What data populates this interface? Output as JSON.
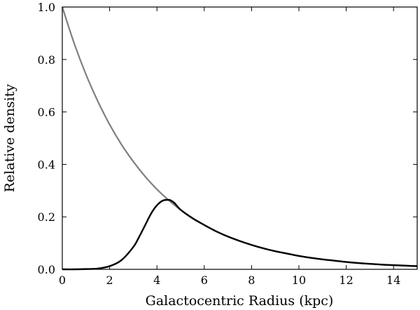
{
  "chart_data": {
    "type": "line",
    "xlabel": "Galactocentric Radius (kpc)",
    "ylabel": "Relative density",
    "xlim": [
      0,
      15
    ],
    "ylim": [
      0,
      1.0
    ],
    "xticks": [
      0,
      2,
      4,
      6,
      8,
      10,
      12,
      14
    ],
    "yticks": [
      0.0,
      0.2,
      0.4,
      0.6,
      0.8,
      1.0
    ],
    "xtick_labels": [
      "0",
      "2",
      "4",
      "6",
      "8",
      "10",
      "12",
      "14"
    ],
    "ytick_labels": [
      "0.0",
      "0.2",
      "0.4",
      "0.6",
      "0.8",
      "1.0"
    ],
    "grid": false,
    "series": [
      {
        "color": "#808080",
        "x": [
          0,
          0.5,
          1,
          1.5,
          2,
          2.5,
          3,
          3.5,
          4,
          4.5,
          5,
          5.5,
          6,
          6.5,
          7,
          7.5,
          8,
          8.5,
          9,
          9.5,
          10,
          10.5,
          11,
          11.5,
          12,
          12.5,
          13,
          13.5,
          14,
          14.5,
          15
        ],
        "y": [
          1.0,
          0.862,
          0.743,
          0.641,
          0.552,
          0.476,
          0.411,
          0.354,
          0.305,
          0.263,
          0.227,
          0.195,
          0.169,
          0.145,
          0.125,
          0.108,
          0.093,
          0.08,
          0.069,
          0.06,
          0.051,
          0.044,
          0.038,
          0.033,
          0.028,
          0.024,
          0.021,
          0.018,
          0.016,
          0.014,
          0.012
        ]
      },
      {
        "color": "#000000",
        "x": [
          0,
          0.5,
          1,
          1.5,
          2,
          2.5,
          3,
          3.25,
          3.5,
          3.75,
          4,
          4.25,
          4.5,
          4.6,
          4.75,
          5,
          5.5,
          6,
          6.5,
          7,
          7.5,
          8,
          8.5,
          9,
          9.5,
          10,
          10.5,
          11,
          11.5,
          12,
          12.5,
          13,
          13.5,
          14,
          14.5,
          15
        ],
        "y": [
          0.0,
          0.0,
          0.001,
          0.003,
          0.012,
          0.035,
          0.085,
          0.124,
          0.168,
          0.212,
          0.244,
          0.262,
          0.265,
          0.262,
          0.252,
          0.227,
          0.195,
          0.169,
          0.145,
          0.125,
          0.108,
          0.093,
          0.08,
          0.069,
          0.06,
          0.051,
          0.044,
          0.038,
          0.033,
          0.028,
          0.024,
          0.021,
          0.018,
          0.016,
          0.014,
          0.012
        ]
      }
    ]
  }
}
